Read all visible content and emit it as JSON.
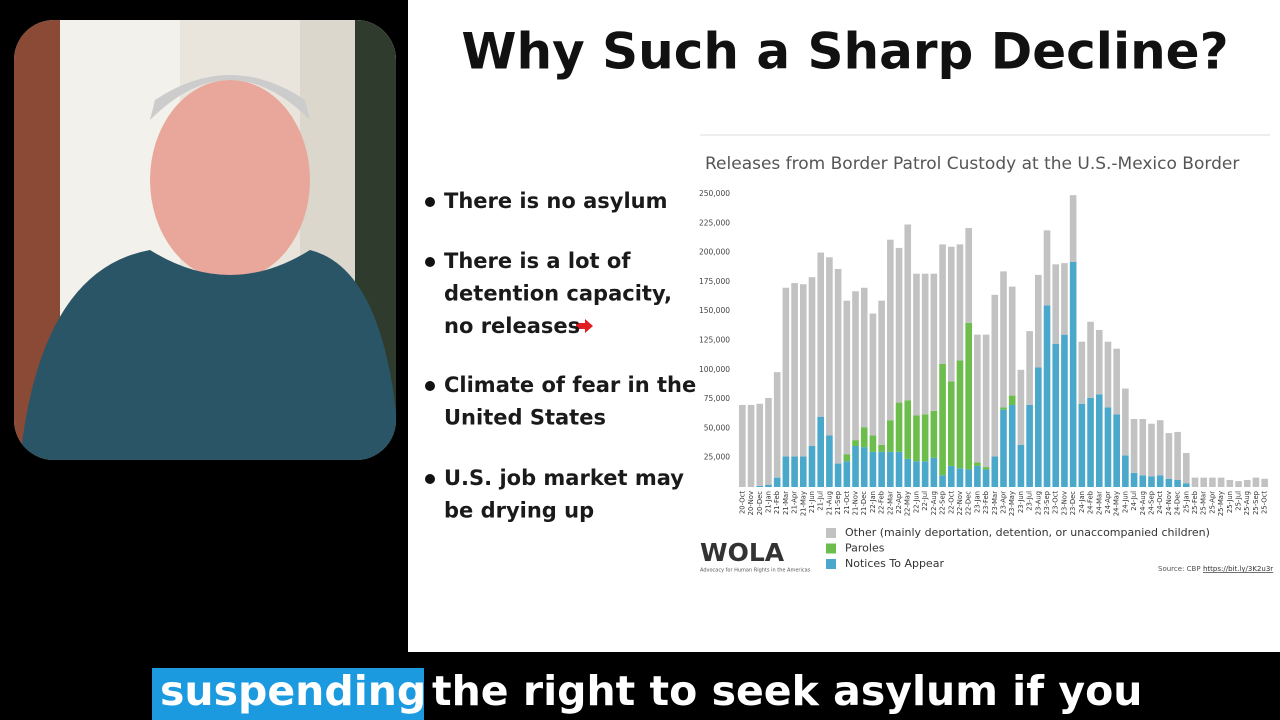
{
  "slide": {
    "title": "Why Such a Sharp Decline?",
    "bullets": [
      [
        "There is no asylum"
      ],
      [
        "There is a lot of",
        "detention capacity,",
        "no releases"
      ],
      [
        "Climate of fear in the",
        "United States"
      ],
      [
        "U.S. job market may",
        "be drying up"
      ]
    ],
    "logo": {
      "name": "WOLA",
      "tagline": "Advocacy for Human Rights in the Americas"
    },
    "source": {
      "text": "Source: CBP",
      "link": "https://bit.ly/3K2u3r"
    }
  },
  "caption": {
    "highlighted": "suspending",
    "rest": "the right to seek asylum if you"
  },
  "chart_data": {
    "type": "stacked-bar",
    "title": "Releases from Border Patrol Custody at the U.S.-Mexico Border",
    "categories": [
      "20-Oct",
      "20-Nov",
      "20-Dec",
      "21-Jan",
      "21-Feb",
      "21-Mar",
      "21-Apr",
      "21-May",
      "21-Jun",
      "21-Jul",
      "21-Aug",
      "21-Sep",
      "21-Oct",
      "21-Nov",
      "21-Dec",
      "22-Jan",
      "22-Feb",
      "22-Mar",
      "22-Apr",
      "22-May",
      "22-Jun",
      "22-Jul",
      "22-Aug",
      "22-Sep",
      "22-Oct",
      "22-Nov",
      "22-Dec",
      "23-Jan",
      "23-Feb",
      "23-Mar",
      "23-Apr",
      "23-May",
      "23-Jun",
      "23-Jul",
      "23-Aug",
      "23-Sep",
      "23-Oct",
      "23-Nov",
      "23-Dec",
      "24-Jan",
      "24-Feb",
      "24-Mar",
      "24-Apr",
      "24-May",
      "24-Jun",
      "24-Jul",
      "24-Aug",
      "24-Sep",
      "24-Oct",
      "24-Nov",
      "24-Dec",
      "25-Jan",
      "25-Feb",
      "25-Mar",
      "25-Apr",
      "25-May",
      "25-Jun",
      "25-Jul",
      "25-Aug",
      "25-Sep",
      "25-Oct"
    ],
    "series": [
      {
        "name": "Notices To Appear",
        "color": "#4aa8cb",
        "values": [
          0,
          0,
          1000,
          2000,
          8000,
          26000,
          26000,
          26000,
          35000,
          60000,
          44000,
          20000,
          22000,
          35000,
          34000,
          30000,
          30000,
          30000,
          30000,
          24000,
          22000,
          22000,
          25000,
          10000,
          18000,
          16000,
          15000,
          18000,
          15000,
          26000,
          66000,
          70000,
          36000,
          70000,
          102000,
          155000,
          122000,
          130000,
          192000,
          71000,
          76000,
          79000,
          68000,
          62000,
          27000,
          12000,
          10000,
          9000,
          10000,
          7000,
          6000,
          3000,
          0,
          0,
          0,
          0,
          0,
          0,
          0,
          0,
          0
        ]
      },
      {
        "name": "Paroles",
        "color": "#6cbd4c",
        "values": [
          0,
          0,
          0,
          0,
          0,
          0,
          0,
          0,
          0,
          0,
          0,
          0,
          6000,
          5000,
          17000,
          14000,
          6000,
          27000,
          42000,
          50000,
          39000,
          40000,
          40000,
          95000,
          72000,
          92000,
          125000,
          3000,
          2000,
          0,
          2000,
          8000,
          0,
          0,
          0,
          0,
          0,
          0,
          0,
          0,
          0,
          0,
          0,
          0,
          0,
          0,
          0,
          0,
          0,
          0,
          0,
          0,
          0,
          0,
          0,
          0,
          0,
          0,
          0,
          0,
          0
        ]
      },
      {
        "name": "Other (mainly deportation, detention, or unaccompanied children)",
        "color": "#c2c2c2",
        "values": [
          70000,
          70000,
          70000,
          74000,
          90000,
          144000,
          148000,
          147000,
          144000,
          140000,
          152000,
          166000,
          131000,
          127000,
          119000,
          104000,
          123000,
          154000,
          132000,
          150000,
          121000,
          120000,
          117000,
          102000,
          115000,
          99000,
          81000,
          109000,
          113000,
          138000,
          116000,
          93000,
          64000,
          63000,
          79000,
          64000,
          68000,
          61000,
          57000,
          53000,
          65000,
          55000,
          56000,
          56000,
          57000,
          46000,
          48000,
          45000,
          47000,
          39000,
          41000,
          26000,
          8000,
          8000,
          8000,
          8000,
          6000,
          5000,
          6000,
          8000,
          7000
        ]
      }
    ],
    "ylim": [
      0,
      250000
    ],
    "yticks": [
      {
        "value": 25000,
        "label": "25,000"
      },
      {
        "value": 50000,
        "label": "50,000"
      },
      {
        "value": 75000,
        "label": "75,000"
      },
      {
        "value": 100000,
        "label": "100,000"
      },
      {
        "value": 125000,
        "label": "125,000"
      },
      {
        "value": 150000,
        "label": "150,000"
      },
      {
        "value": 175000,
        "label": "175,000"
      },
      {
        "value": 200000,
        "label": "200,000"
      },
      {
        "value": 225000,
        "label": "225,000"
      },
      {
        "value": 250000,
        "label": "250,000"
      }
    ],
    "grid": false
  }
}
